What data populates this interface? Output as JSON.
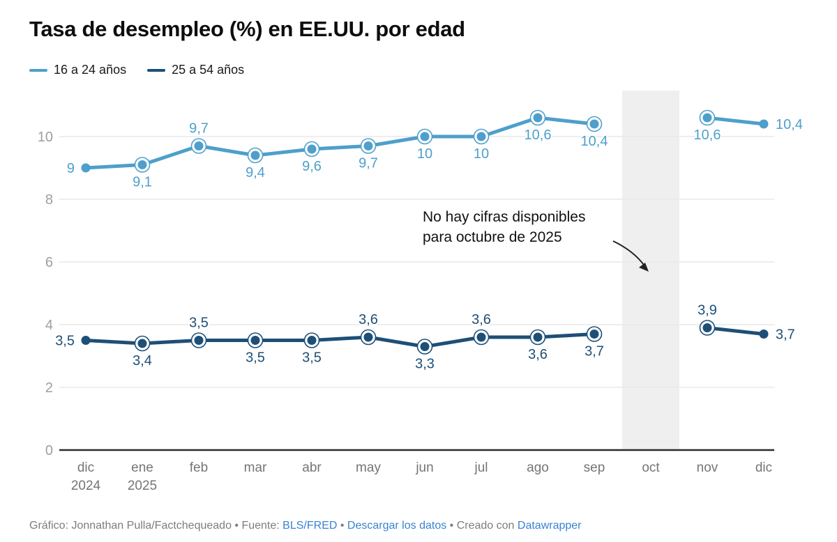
{
  "title": "Tasa de desempleo (%) en EE.UU. por edad",
  "legend": [
    {
      "label": "16 a 24 años",
      "color": "#4e9fcb"
    },
    {
      "label": "25 a 54 años",
      "color": "#1d4f77"
    }
  ],
  "chart_data": {
    "type": "line",
    "x": [
      {
        "label": "dic",
        "sub": "2024"
      },
      {
        "label": "ene",
        "sub": "2025"
      },
      {
        "label": "feb",
        "sub": ""
      },
      {
        "label": "mar",
        "sub": ""
      },
      {
        "label": "abr",
        "sub": ""
      },
      {
        "label": "may",
        "sub": ""
      },
      {
        "label": "jun",
        "sub": ""
      },
      {
        "label": "jul",
        "sub": ""
      },
      {
        "label": "ago",
        "sub": ""
      },
      {
        "label": "sep",
        "sub": ""
      },
      {
        "label": "oct",
        "sub": ""
      },
      {
        "label": "nov",
        "sub": ""
      },
      {
        "label": "dic",
        "sub": ""
      }
    ],
    "series": [
      {
        "name": "16 a 24 años",
        "color": "#4e9fcb",
        "values": [
          9,
          9.1,
          9.7,
          9.4,
          9.6,
          9.7,
          10,
          10,
          10.6,
          10.4,
          null,
          10.6,
          10.4
        ],
        "labels": [
          "9",
          "9,1",
          "9,7",
          "9,4",
          "9,6",
          "9,7",
          "10",
          "10",
          "10,6",
          "10,4",
          "",
          "10,6",
          "10,4"
        ],
        "label_pos": [
          "left",
          "below",
          "above",
          "below",
          "below",
          "below",
          "below",
          "below",
          "below",
          "below",
          "",
          "below",
          "right"
        ]
      },
      {
        "name": "25 a 54 años",
        "color": "#1d4f77",
        "values": [
          3.5,
          3.4,
          3.5,
          3.5,
          3.5,
          3.6,
          3.3,
          3.6,
          3.6,
          3.7,
          null,
          3.9,
          3.7
        ],
        "labels": [
          "3,5",
          "3,4",
          "3,5",
          "3,5",
          "3,5",
          "3,6",
          "3,3",
          "3,6",
          "3,6",
          "3,7",
          "",
          "3,9",
          "3,7"
        ],
        "label_pos": [
          "left",
          "below",
          "above",
          "below",
          "below",
          "above",
          "below",
          "above",
          "below",
          "below",
          "",
          "above",
          "right"
        ]
      }
    ],
    "ylim": [
      0,
      10.6
    ],
    "yticks": [
      0,
      2,
      4,
      6,
      8,
      10
    ],
    "grid": true,
    "legend_position": "top-left",
    "missing_band": {
      "x_index": 10,
      "color": "#efefef"
    },
    "annotation": {
      "line1": "No hay cifras disponibles",
      "line2": "para octubre de 2025"
    },
    "colors": {
      "grid": "#e9e9e9",
      "axis": "#2b2b2b",
      "tick_label": "#9e9e9e",
      "month_label": "#757575",
      "annotation_text": "#111111",
      "arrow": "#222222"
    }
  },
  "footer": {
    "prefix": "Gráfico: Jonnathan Pulla/Factchequeado • Fuente: ",
    "source_link": "BLS/FRED",
    "sep1": " • ",
    "download_link": "Descargar los datos",
    "sep2": " • ",
    "created_with": "Creado con ",
    "datawrapper_link": "Datawrapper"
  }
}
